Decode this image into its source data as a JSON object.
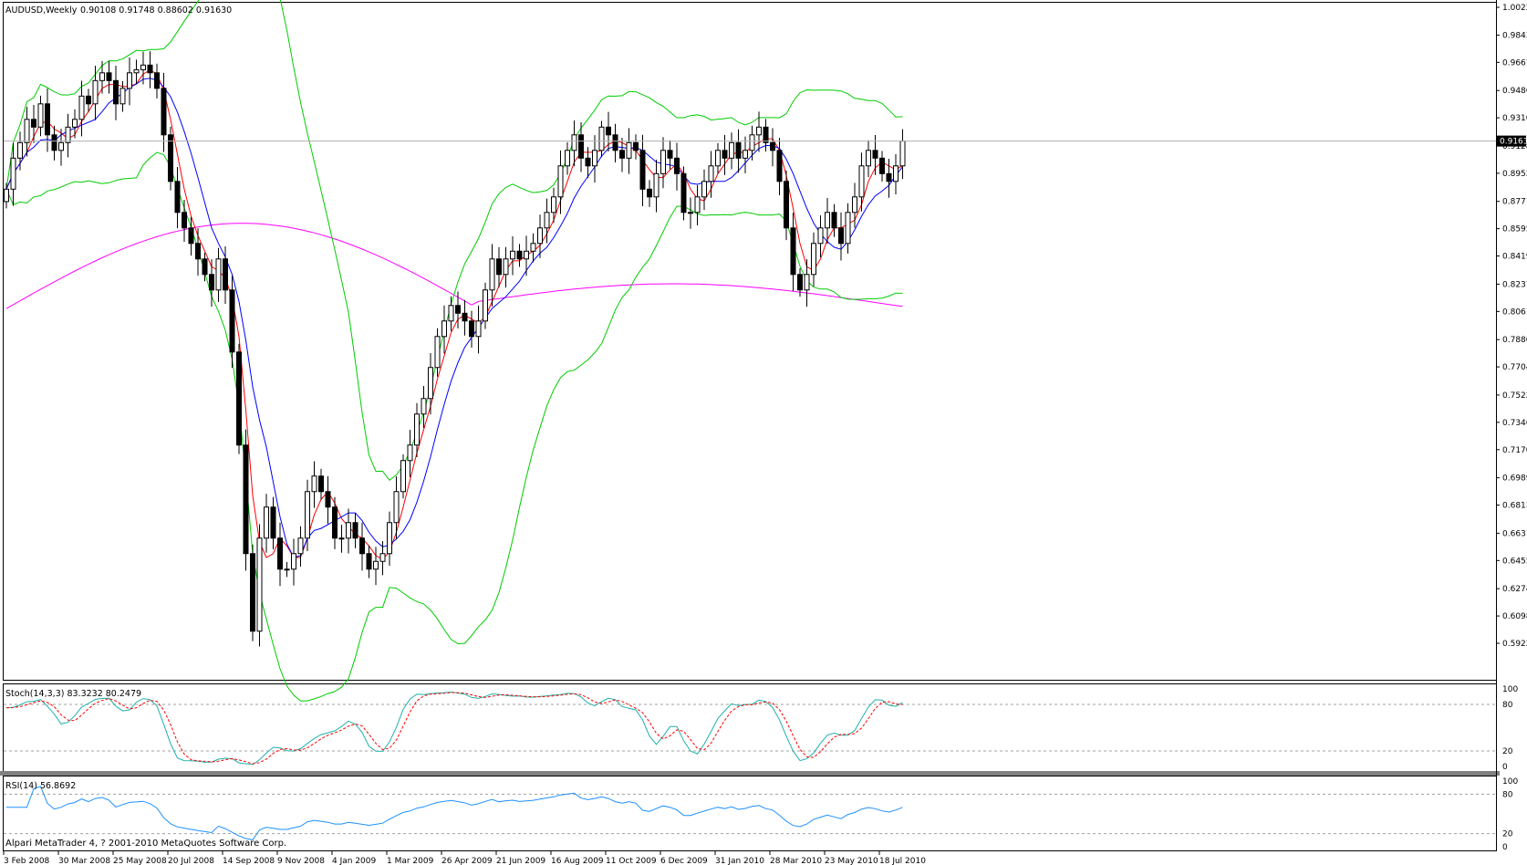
{
  "chart_data": {
    "type": "candlestick",
    "header": {
      "symbol": "AUDUSD,Weekly",
      "ohlc": "0.90108 0.91748 0.88602 0.91630"
    },
    "current_price_label": "0.91630",
    "y_axis_ticks": [
      "1.00225",
      "0.98435",
      "0.96675",
      "0.94860",
      "0.93100",
      "0.91285",
      "0.89525",
      "0.87710",
      "0.85950",
      "0.84190",
      "0.82375",
      "0.80615",
      "0.78800",
      "0.77040",
      "0.75225",
      "0.73465",
      "0.71705",
      "0.69890",
      "0.68130",
      "0.66315",
      "0.64555",
      "0.62740",
      "0.60980",
      "0.59220"
    ],
    "ylim": [
      0.5922,
      1.00225
    ],
    "x_axis_labels": [
      "3 Feb 2008",
      "30 Mar 2008",
      "25 May 2008",
      "20 Jul 2008",
      "14 Sep 2008",
      "9 Nov 2008",
      "4 Jan 2009",
      "1 Mar 2009",
      "26 Apr 2009",
      "21 Jun 2009",
      "16 Aug 2009",
      "11 Oct 2009",
      "6 Dec 2009",
      "31 Jan 2010",
      "28 Mar 2010",
      "23 May 2010",
      "18 Jul 2010"
    ],
    "price_path": [
      0.885,
      0.905,
      0.915,
      0.93,
      0.925,
      0.94,
      0.92,
      0.91,
      0.915,
      0.925,
      0.93,
      0.945,
      0.94,
      0.955,
      0.96,
      0.955,
      0.94,
      0.95,
      0.96,
      0.962,
      0.965,
      0.96,
      0.95,
      0.92,
      0.89,
      0.87,
      0.86,
      0.85,
      0.84,
      0.83,
      0.82,
      0.84,
      0.82,
      0.78,
      0.72,
      0.65,
      0.6,
      0.66,
      0.68,
      0.66,
      0.64,
      0.64,
      0.65,
      0.66,
      0.69,
      0.7,
      0.69,
      0.68,
      0.66,
      0.66,
      0.67,
      0.66,
      0.65,
      0.64,
      0.645,
      0.65,
      0.67,
      0.69,
      0.71,
      0.72,
      0.74,
      0.75,
      0.77,
      0.79,
      0.8,
      0.81,
      0.805,
      0.8,
      0.79,
      0.8,
      0.82,
      0.84,
      0.83,
      0.84,
      0.845,
      0.84,
      0.845,
      0.85,
      0.86,
      0.87,
      0.88,
      0.9,
      0.91,
      0.92,
      0.905,
      0.9,
      0.91,
      0.925,
      0.92,
      0.91,
      0.905,
      0.915,
      0.91,
      0.885,
      0.88,
      0.895,
      0.91,
      0.905,
      0.895,
      0.87,
      0.87,
      0.88,
      0.89,
      0.9,
      0.91,
      0.905,
      0.915,
      0.905,
      0.91,
      0.92,
      0.925,
      0.915,
      0.91,
      0.89,
      0.86,
      0.83,
      0.82,
      0.83,
      0.85,
      0.86,
      0.87,
      0.86,
      0.85,
      0.87,
      0.88,
      0.9,
      0.91,
      0.905,
      0.895,
      0.89,
      0.9,
      0.916
    ],
    "bollinger_bands": {
      "color": "#00cc00"
    },
    "moving_averages": [
      {
        "color": "#ff0000"
      },
      {
        "color": "#0000ff"
      },
      {
        "color": "#ff00ff"
      }
    ],
    "indicators": [
      {
        "type": "stochastic",
        "label": "Stoch(14,3,3) 83.3232 80.2479",
        "levels": [
          "100",
          "80",
          "20",
          "0"
        ],
        "main_color": "#20b2aa",
        "signal_color": "#ff0000",
        "current_main": 83.3232,
        "current_signal": 80.2479
      },
      {
        "type": "rsi",
        "label": "RSI(14) 56.8692",
        "levels": [
          "100",
          "80",
          "20",
          "0"
        ],
        "color": "#1e90ff",
        "current": 56.8692
      }
    ],
    "footer": "Alpari MetaTrader 4, ? 2001-2010 MetaQuotes Software Corp."
  }
}
